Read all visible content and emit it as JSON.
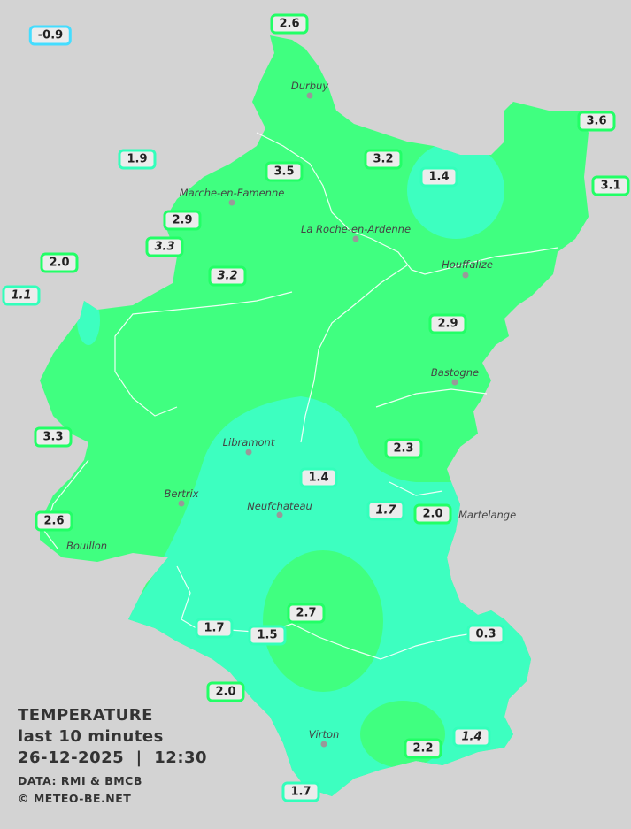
{
  "colors": {
    "background": "#d3d3d3",
    "zone_2_to_4": "#40ff80",
    "zone_0_to_2": "#3dffc0",
    "river": "#ffffff",
    "label_border_warm": "#22ff66",
    "label_border_mild": "#33ffbb",
    "label_border_cold": "#44ddff"
  },
  "legend": {
    "title": "TEMPERATURE",
    "period": "last 10 minutes",
    "datetime": "26-12-2025  |  12:30",
    "source": "DATA: RMI & BMCB",
    "copyright": "© METEO-BE.NET"
  },
  "places": [
    "Durbuy",
    "Marche-en-Famenne",
    "La Roche-en-Ardenne",
    "Houffalize",
    "Bastogne",
    "Libramont",
    "Bertrix",
    "Neufchateau",
    "Bouillon",
    "Martelange",
    "Virton"
  ],
  "stations": [
    {
      "value": "-0.9",
      "italic": false,
      "tone": "cyan"
    },
    {
      "value": "2.6",
      "italic": false,
      "tone": "warm"
    },
    {
      "value": "3.6",
      "italic": false,
      "tone": "warm"
    },
    {
      "value": "1.9",
      "italic": false,
      "tone": "teal"
    },
    {
      "value": "3.2",
      "italic": false,
      "tone": "warm"
    },
    {
      "value": "1.4",
      "italic": false,
      "tone": "teal"
    },
    {
      "value": "3.1",
      "italic": false,
      "tone": "warm"
    },
    {
      "value": "3.5",
      "italic": false,
      "tone": "warm"
    },
    {
      "value": "2.9",
      "italic": false,
      "tone": "warm"
    },
    {
      "value": "3.3",
      "italic": true,
      "tone": "warm"
    },
    {
      "value": "2.0",
      "italic": false,
      "tone": "warm"
    },
    {
      "value": "1.1",
      "italic": true,
      "tone": "teal"
    },
    {
      "value": "3.2",
      "italic": true,
      "tone": "warm"
    },
    {
      "value": "2.9",
      "italic": false,
      "tone": "warm"
    },
    {
      "value": "3.3",
      "italic": false,
      "tone": "warm"
    },
    {
      "value": "2.3",
      "italic": false,
      "tone": "warm"
    },
    {
      "value": "1.4",
      "italic": false,
      "tone": "teal"
    },
    {
      "value": "1.7",
      "italic": true,
      "tone": "teal"
    },
    {
      "value": "2.0",
      "italic": false,
      "tone": "warm"
    },
    {
      "value": "2.6",
      "italic": false,
      "tone": "warm"
    },
    {
      "value": "2.7",
      "italic": false,
      "tone": "warm"
    },
    {
      "value": "1.7",
      "italic": false,
      "tone": "teal"
    },
    {
      "value": "1.5",
      "italic": false,
      "tone": "teal"
    },
    {
      "value": "0.3",
      "italic": false,
      "tone": "teal"
    },
    {
      "value": "2.0",
      "italic": false,
      "tone": "warm"
    },
    {
      "value": "1.4",
      "italic": true,
      "tone": "teal"
    },
    {
      "value": "2.2",
      "italic": false,
      "tone": "warm"
    },
    {
      "value": "1.7",
      "italic": false,
      "tone": "teal"
    }
  ]
}
